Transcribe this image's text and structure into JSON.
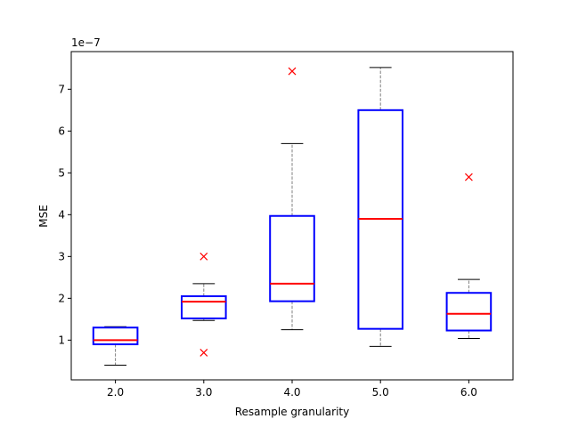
{
  "chart_data": {
    "type": "box",
    "title": "",
    "xlabel": "Resample granularity",
    "ylabel": "MSE",
    "y_multiplier_label": "1e−7",
    "y_scale_exponent": -7,
    "xlim": [
      0.5,
      5.5
    ],
    "ylim": [
      0.05,
      7.9
    ],
    "yticks": [
      1,
      2,
      3,
      4,
      5,
      6,
      7
    ],
    "ytick_labels": [
      "1",
      "2",
      "3",
      "4",
      "5",
      "6",
      "7"
    ],
    "categories": [
      "2.0",
      "3.0",
      "4.0",
      "5.0",
      "6.0"
    ],
    "boxes": [
      {
        "label": "2.0",
        "whisker_low": 0.4,
        "q1": 0.9,
        "median": 1.0,
        "q3": 1.3,
        "whisker_high": 1.32,
        "outliers": []
      },
      {
        "label": "3.0",
        "whisker_low": 1.47,
        "q1": 1.52,
        "median": 1.92,
        "q3": 2.05,
        "whisker_high": 2.35,
        "outliers": [
          3.0,
          0.7
        ]
      },
      {
        "label": "4.0",
        "whisker_low": 1.25,
        "q1": 1.93,
        "median": 2.35,
        "q3": 3.97,
        "whisker_high": 5.7,
        "outliers": [
          7.43
        ]
      },
      {
        "label": "5.0",
        "whisker_low": 0.85,
        "q1": 1.27,
        "median": 3.9,
        "q3": 6.5,
        "whisker_high": 7.52,
        "outliers": []
      },
      {
        "label": "6.0",
        "whisker_low": 1.04,
        "q1": 1.23,
        "median": 1.63,
        "q3": 2.13,
        "whisker_high": 2.45,
        "outliers": [
          4.9
        ]
      }
    ],
    "colors": {
      "box": "#0000ff",
      "median": "#ff0000",
      "whisker": "#808080",
      "cap": "#000000",
      "outlier": "#ff0000"
    },
    "outlier_marker": "x",
    "grid": false
  }
}
